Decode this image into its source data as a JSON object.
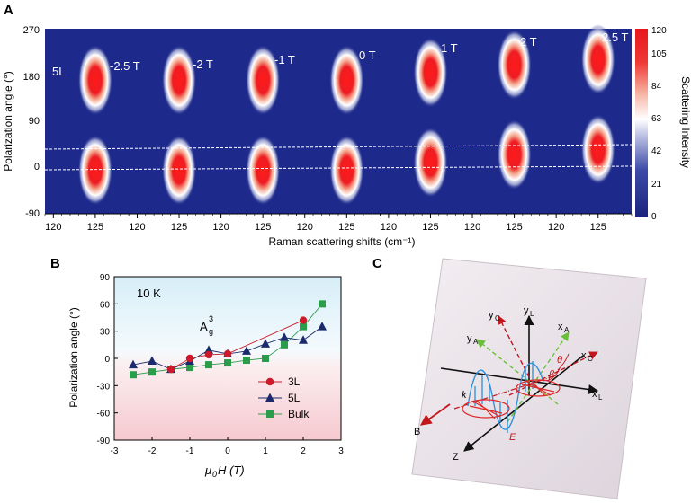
{
  "panel_a": {
    "label": "A",
    "ylabel": "Polarization  angle (°)",
    "xlabel": "Raman scattering shifts (cm⁻¹)",
    "yticks": [
      "270",
      "180",
      "90",
      "0",
      "-90"
    ],
    "sample_label": "5L",
    "field_labels": [
      "-2.5 T",
      "-2 T",
      "-1 T",
      "0 T",
      "1 T",
      "2 T",
      "2.5 T"
    ],
    "xtick_labels": [
      "120",
      "125"
    ],
    "colorbar": {
      "title": "Scattering Intensity",
      "ticks": [
        "120",
        "105",
        "84",
        "63",
        "42",
        "21",
        "0"
      ]
    },
    "colors": {
      "background": "#1d2a8c",
      "peak": "#e8161b"
    }
  },
  "panel_b": {
    "label": "B",
    "ylabel": "Polarization  angle (°)",
    "xlabel_main": "μ",
    "xlabel_sub": "0",
    "xlabel_rest": "H  (T)",
    "annotation_temp": "10 K",
    "annotation_mode": "A",
    "annotation_mode_sup": "3",
    "annotation_mode_sub": "g"
  },
  "panel_c": {
    "label": "C",
    "axis_labels": {
      "yL": "y",
      "yL_sub": "L",
      "yC": "y",
      "yC_sub": "C",
      "yA": "y",
      "yA_sub": "A",
      "xA": "x",
      "xA_sub": "A",
      "xC": "x",
      "xC_sub": "C",
      "xL": "x",
      "xL_sub": "L",
      "z": "Z",
      "B": "B",
      "k": "k",
      "E": "E",
      "theta": "θ",
      "beta": "β"
    }
  },
  "chart_data": [
    {
      "type": "heatmap",
      "panel": "A",
      "ylabel": "Polarization  angle (°)",
      "xlabel": "Raman scattering shifts (cm⁻¹)",
      "ylim": [
        -90,
        270
      ],
      "panels": [
        {
          "field": "-2.5 T",
          "xticks": [
            120,
            125
          ],
          "peak_center_cm": 125,
          "max_angles_deg": [
            170,
            -5
          ]
        },
        {
          "field": "-2 T",
          "xticks": [
            120,
            125
          ],
          "peak_center_cm": 125,
          "max_angles_deg": [
            170,
            -5
          ]
        },
        {
          "field": "-1 T",
          "xticks": [
            120,
            125
          ],
          "peak_center_cm": 125,
          "max_angles_deg": [
            170,
            -5
          ]
        },
        {
          "field": "0 T",
          "xticks": [
            120,
            125
          ],
          "peak_center_cm": 125,
          "max_angles_deg": [
            170,
            -5
          ]
        },
        {
          "field": "1 T",
          "xticks": [
            120,
            125
          ],
          "peak_center_cm": 125,
          "max_angles_deg": [
            185,
            10
          ]
        },
        {
          "field": "2 T",
          "xticks": [
            120,
            125
          ],
          "peak_center_cm": 125,
          "max_angles_deg": [
            200,
            25
          ]
        },
        {
          "field": "2.5 T",
          "xticks": [
            120,
            125
          ],
          "peak_center_cm": 125,
          "max_angles_deg": [
            210,
            35
          ]
        }
      ],
      "colorbar": {
        "title": "Scattering Intensity",
        "range": [
          0,
          120
        ],
        "ticks": [
          0,
          21,
          42,
          63,
          84,
          105,
          120
        ]
      }
    },
    {
      "type": "line",
      "panel": "B",
      "ylabel": "Polarization  angle (°)",
      "xlabel": "μ0H  (T)",
      "xlim": [
        -3,
        3
      ],
      "ylim": [
        -90,
        90
      ],
      "xticks": [
        -3,
        -2,
        -1,
        0,
        1,
        2,
        3
      ],
      "yticks": [
        90,
        60,
        30,
        0,
        -30,
        -60,
        -90
      ],
      "legend_position": "bottom-right",
      "series": [
        {
          "name": "3L",
          "marker": "circle",
          "color": "#cc1a2a",
          "x": [
            -1.5,
            -1,
            -0.5,
            0,
            2
          ],
          "y": [
            -12,
            0,
            4,
            5,
            42
          ]
        },
        {
          "name": "5L",
          "marker": "triangle",
          "color": "#1b2a6b",
          "x": [
            -2.5,
            -2,
            -1.5,
            -1,
            -0.5,
            0,
            0.5,
            1,
            1.5,
            2,
            2.5
          ],
          "y": [
            -7,
            -3,
            -12,
            -3,
            9,
            5,
            8,
            16,
            23,
            20,
            35
          ]
        },
        {
          "name": "Bulk",
          "marker": "square",
          "color": "#2a9d4b",
          "x": [
            -2.5,
            -2,
            -1.5,
            -1,
            -0.5,
            0,
            0.5,
            1,
            1.5,
            2,
            2.5
          ],
          "y": [
            -18,
            -15,
            -12,
            -10,
            -7,
            -5,
            -2,
            0,
            15,
            35,
            60
          ]
        }
      ]
    }
  ]
}
